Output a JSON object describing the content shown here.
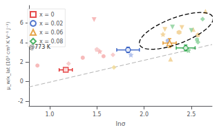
{
  "chart_data": {
    "type": "scatter",
    "xlabel": "lnσ",
    "ylabel": "μ_w/κ_lat (10³ cm³ K V⁻¹ J⁻¹)",
    "xlim": [
      0.78,
      2.72
    ],
    "ylim": [
      -2.5,
      7.8
    ],
    "xticks": [
      {
        "value": 1,
        "label": "1.0"
      },
      1.5,
      {
        "value": 2,
        "label": "2.0"
      },
      2.5
    ],
    "yticks": [
      -2,
      0,
      2,
      4,
      6
    ],
    "grid": false,
    "legend": "upper left",
    "annotation": "@773 K",
    "series": [
      {
        "name": "x = 0",
        "color": "#e02020",
        "marker": "square",
        "x": [
          1.17
        ],
        "y": [
          1.2
        ],
        "xerr": [
          0.07
        ],
        "yerr": [
          0.15
        ]
      },
      {
        "name": "x = 0.02",
        "color": "#2855c0",
        "marker": "circle",
        "x": [
          1.83
        ],
        "y": [
          3.25
        ],
        "xerr": [
          0.12
        ],
        "yerr": [
          0.28
        ]
      },
      {
        "name": "x = 0.06",
        "color": "#e09020",
        "marker": "triangle",
        "x": [
          2.27
        ],
        "y": [
          3.95
        ],
        "xerr": [
          0.07
        ],
        "yerr": [
          0.45
        ]
      },
      {
        "name": "x = 0.08",
        "color": "#20a040",
        "marker": "diamond",
        "x": [
          2.44
        ],
        "y": [
          3.45
        ],
        "xerr": [
          0.1
        ],
        "yerr": [
          0.3
        ]
      }
    ],
    "background_points": [
      {
        "x": 0.87,
        "y": 1.65,
        "color": "#f5aaaa",
        "marker": "circle"
      },
      {
        "x": 1.35,
        "y": 2.45,
        "color": "#f5aaaa",
        "marker": "circle"
      },
      {
        "x": 1.57,
        "y": 2.6,
        "color": "#f5aaaa",
        "marker": "circle"
      },
      {
        "x": 1.47,
        "y": 6.35,
        "color": "#f5aaaa",
        "marker": "triangle_down"
      },
      {
        "x": 1.53,
        "y": 3.1,
        "color": "#f5aaaa",
        "marker": "star"
      },
      {
        "x": 1.5,
        "y": 3.3,
        "color": "#f5c0c0",
        "marker": "pentagon"
      },
      {
        "x": 1.2,
        "y": 1.85,
        "color": "#f5c0c0",
        "marker": "diamond"
      },
      {
        "x": 1.67,
        "y": 2.75,
        "color": "#f5c0c0",
        "marker": "diamond"
      },
      {
        "x": 1.86,
        "y": 2.75,
        "color": "#a0b4e8",
        "marker": "star"
      },
      {
        "x": 2.25,
        "y": 4.2,
        "color": "#a0b4e8",
        "marker": "circle"
      },
      {
        "x": 2.28,
        "y": 2.3,
        "color": "#f0cc88",
        "marker": "triangle"
      },
      {
        "x": 2.22,
        "y": 5.35,
        "color": "#f0cc88",
        "marker": "triangle_down"
      },
      {
        "x": 2.4,
        "y": 5.55,
        "color": "#f0cc88",
        "marker": "triangle_down"
      },
      {
        "x": 2.2,
        "y": 4.85,
        "color": "#f0cc88",
        "marker": "star"
      },
      {
        "x": 2.37,
        "y": 5.05,
        "color": "#f0cc88",
        "marker": "hexagon"
      },
      {
        "x": 2.57,
        "y": 4.8,
        "color": "#f0cc88",
        "marker": "pentagon"
      },
      {
        "x": 2.52,
        "y": 5.35,
        "color": "#f0cc88",
        "marker": "triangle"
      },
      {
        "x": 2.65,
        "y": 7.2,
        "color": "#f0cc88",
        "marker": "triangle"
      },
      {
        "x": 1.68,
        "y": 1.45,
        "color": "#f0d890",
        "marker": "diamond"
      },
      {
        "x": 2.3,
        "y": 5.6,
        "color": "#88d098",
        "marker": "triangle_down"
      },
      {
        "x": 2.5,
        "y": 5.25,
        "color": "#88d098",
        "marker": "triangle_down"
      },
      {
        "x": 2.57,
        "y": 4.05,
        "color": "#88d098",
        "marker": "diamond"
      },
      {
        "x": 2.62,
        "y": 6.4,
        "color": "#88d098",
        "marker": "diamond"
      },
      {
        "x": 2.56,
        "y": 4.3,
        "color": "#88d098",
        "marker": "circle"
      },
      {
        "x": 2.47,
        "y": 3.2,
        "color": "#88d098",
        "marker": "star"
      }
    ],
    "trend_line": {
      "x": [
        0.78,
        2.72
      ],
      "y": [
        -0.55,
        3.8
      ],
      "color": "#aaaaaa",
      "line_style": "dashed"
    },
    "ellipse": {
      "center": [
        2.34,
        5.2
      ],
      "width": 0.58,
      "height": 3.8,
      "angle": -8,
      "color": "#000000",
      "line_style": "dashed"
    }
  }
}
